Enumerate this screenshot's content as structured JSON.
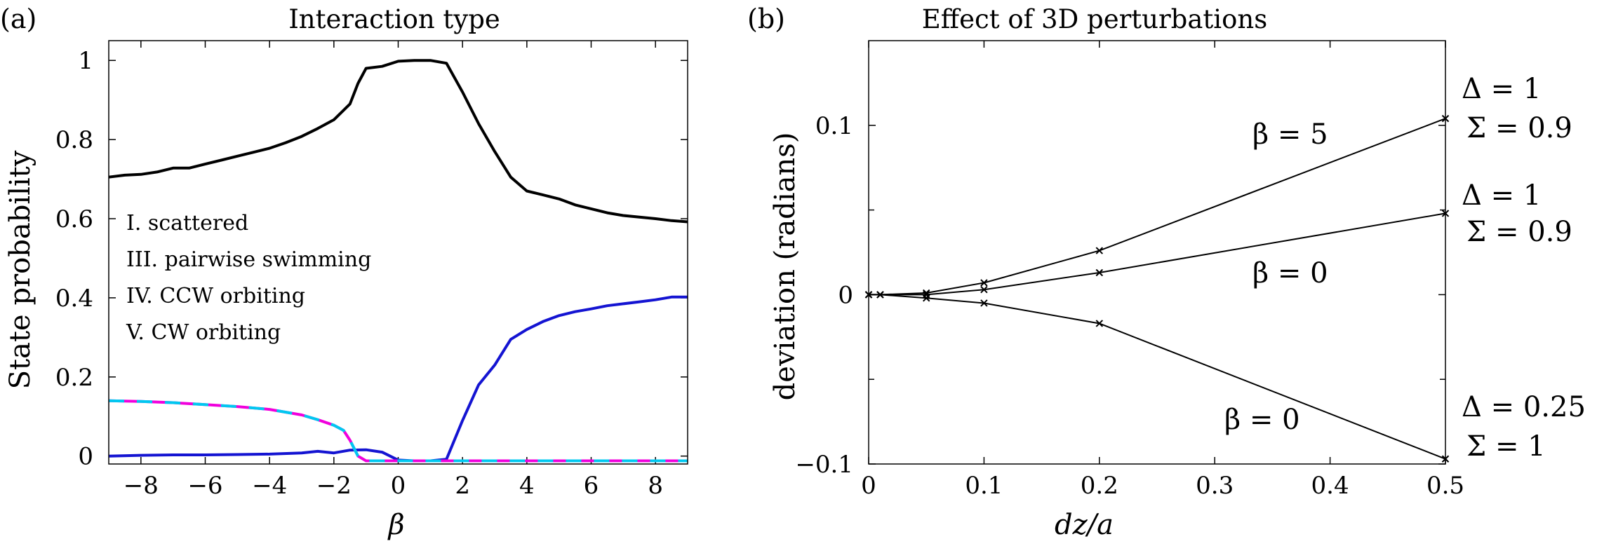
{
  "chart_data": [
    {
      "panel_label": "(a)",
      "type": "line",
      "title": "Interaction type",
      "xlabel": "β",
      "ylabel": "State probability",
      "xlim": [
        -9,
        9
      ],
      "ylim": [
        -0.02,
        1.05
      ],
      "xticks": [
        -8,
        -6,
        -4,
        -2,
        0,
        2,
        4,
        6,
        8
      ],
      "yticks": [
        0,
        0.2,
        0.4,
        0.6,
        0.8,
        1
      ],
      "xtick_labels": [
        "−8",
        "−6",
        "−4",
        "−2",
        "0",
        "2",
        "4",
        "6",
        "8"
      ],
      "ytick_labels": [
        "0",
        "0.2",
        "0.4",
        "0.6",
        "0.8",
        "1"
      ],
      "legend_position": "center-left",
      "series": [
        {
          "name": "I. scattered",
          "color": "#000000",
          "style": "solid",
          "x": [
            -9,
            -8.5,
            -8,
            -7.5,
            -7,
            -6.5,
            -6,
            -5.5,
            -5,
            -4.5,
            -4,
            -3.5,
            -3,
            -2.5,
            -2,
            -1.5,
            -1.25,
            -1,
            -0.5,
            0,
            0.5,
            1,
            1.5,
            2,
            2.5,
            3,
            3.5,
            4,
            4.5,
            5,
            5.5,
            6,
            6.5,
            7,
            7.5,
            8,
            8.5,
            9
          ],
          "y": [
            0.705,
            0.71,
            0.712,
            0.718,
            0.728,
            0.728,
            0.738,
            0.748,
            0.758,
            0.768,
            0.778,
            0.792,
            0.808,
            0.828,
            0.85,
            0.89,
            0.942,
            0.98,
            0.985,
            0.998,
            1.0,
            1.0,
            0.993,
            0.92,
            0.84,
            0.77,
            0.705,
            0.67,
            0.66,
            0.65,
            0.635,
            0.625,
            0.615,
            0.608,
            0.604,
            0.6,
            0.595,
            0.592
          ]
        },
        {
          "name": "III. pairwise swimming",
          "color": "#1414d2",
          "style": "solid",
          "x": [
            -9,
            -8,
            -7,
            -6,
            -5,
            -4,
            -3,
            -2.5,
            -2,
            -1.5,
            -1,
            -0.5,
            0,
            0.5,
            1,
            1.5,
            2,
            2.5,
            3,
            3.5,
            4,
            4.5,
            5,
            5.5,
            6,
            6.5,
            7,
            7.5,
            8,
            8.5,
            9
          ],
          "y": [
            0.0,
            0.002,
            0.003,
            0.003,
            0.004,
            0.005,
            0.008,
            0.012,
            0.008,
            0.015,
            0.016,
            0.01,
            -0.01,
            -0.012,
            -0.012,
            -0.008,
            0.09,
            0.18,
            0.23,
            0.295,
            0.32,
            0.34,
            0.355,
            0.365,
            0.372,
            0.38,
            0.385,
            0.39,
            0.395,
            0.402,
            0.402
          ]
        },
        {
          "name": "IV. CCW orbiting",
          "color": "#00c8f0",
          "style": "dashed",
          "x": [
            -9,
            -8,
            -7,
            -6,
            -5,
            -4,
            -3,
            -2.5,
            -2,
            -1.7,
            -1.5,
            -1.25,
            -1,
            0,
            1,
            2,
            3,
            4,
            5,
            6,
            7,
            8,
            9
          ],
          "y": [
            0.14,
            0.138,
            0.135,
            0.13,
            0.125,
            0.118,
            0.104,
            0.092,
            0.078,
            0.065,
            0.04,
            0.0,
            -0.012,
            -0.012,
            -0.012,
            -0.012,
            -0.012,
            -0.012,
            -0.012,
            -0.012,
            -0.012,
            -0.012,
            -0.012
          ]
        },
        {
          "name": "V. CW orbiting",
          "color": "#f000dc",
          "style": "dashed",
          "x": [
            -9,
            -8,
            -7,
            -6,
            -5,
            -4,
            -3,
            -2.5,
            -2,
            -1.7,
            -1.5,
            -1.25,
            -1,
            0,
            1,
            2,
            3,
            4,
            5,
            6,
            7,
            8,
            9
          ],
          "y": [
            0.14,
            0.138,
            0.135,
            0.13,
            0.125,
            0.118,
            0.104,
            0.092,
            0.078,
            0.065,
            0.04,
            0.0,
            -0.012,
            -0.012,
            -0.012,
            -0.012,
            -0.012,
            -0.012,
            -0.012,
            -0.012,
            -0.012,
            -0.012,
            -0.012
          ]
        }
      ]
    },
    {
      "panel_label": "(b)",
      "type": "line",
      "title": "Effect of 3D perturbations",
      "xlabel": "dz/a",
      "ylabel": "deviation (radians)",
      "xlim": [
        0,
        0.5
      ],
      "ylim": [
        -0.1,
        0.15
      ],
      "xticks": [
        0,
        0.1,
        0.2,
        0.3,
        0.4,
        0.5
      ],
      "yticks": [
        -0.1,
        0,
        0.1
      ],
      "xtick_labels": [
        "0",
        "0.1",
        "0.2",
        "0.3",
        "0.4",
        "0.5"
      ],
      "ytick_labels": [
        "−0.1",
        "0",
        "0.1"
      ],
      "minor_yticks": [
        -0.05,
        0.05
      ],
      "marker": "x",
      "series": [
        {
          "name": "β = 5",
          "color": "#000000",
          "x": [
            0,
            0.01,
            0.05,
            0.1,
            0.2,
            0.5
          ],
          "y": [
            0,
            0,
            0.001,
            0.007,
            0.026,
            0.104
          ],
          "annotation": "β = 5",
          "right_labels": [
            "Δ = 1",
            "Σ = 0.9"
          ]
        },
        {
          "name": "β = 0",
          "color": "#000000",
          "x": [
            0,
            0.01,
            0.05,
            0.1,
            0.2,
            0.5
          ],
          "y": [
            0,
            0,
            0.0,
            0.003,
            0.013,
            0.048
          ],
          "annotation": "β = 0",
          "right_labels": [
            "Δ = 1",
            "Σ = 0.9"
          ]
        },
        {
          "name": "β = 0",
          "color": "#000000",
          "x": [
            0,
            0.01,
            0.05,
            0.1,
            0.2,
            0.5
          ],
          "y": [
            0,
            0,
            -0.002,
            -0.005,
            -0.017,
            -0.097
          ],
          "annotation": "β = 0",
          "right_labels": [
            "Δ = 0.25",
            "Σ = 1"
          ]
        }
      ]
    }
  ]
}
